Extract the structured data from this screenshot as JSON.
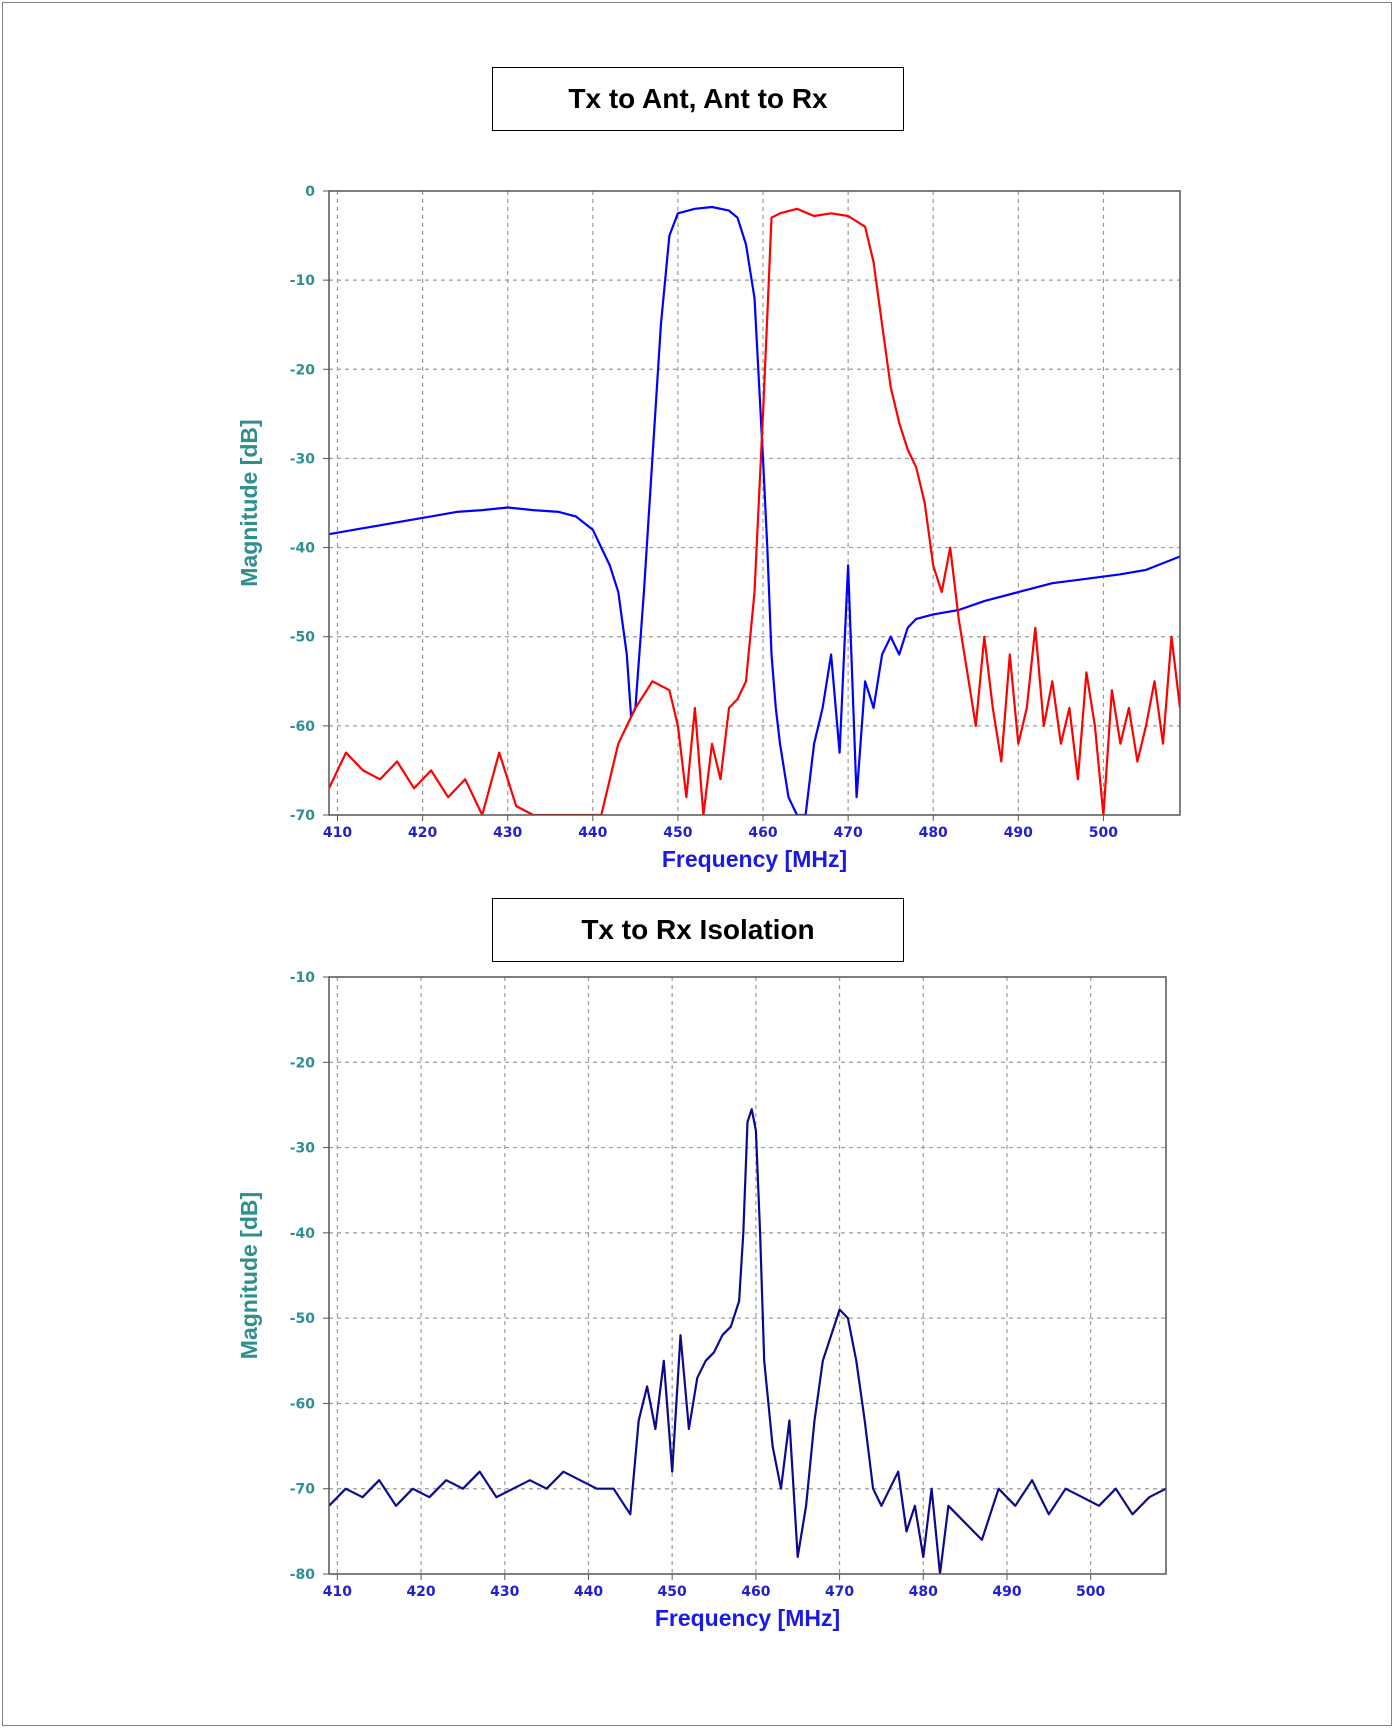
{
  "chart_data": [
    {
      "type": "line",
      "title": "Tx to Ant, Ant to Rx",
      "xlabel": "Frequency [MHz]",
      "ylabel": "Magnitude [dB]",
      "xlim": [
        409,
        509
      ],
      "ylim": [
        -70,
        0
      ],
      "xticks": [
        410,
        420,
        430,
        440,
        450,
        460,
        470,
        480,
        490,
        500
      ],
      "yticks": [
        0,
        -10,
        -20,
        -30,
        -40,
        -50,
        -60,
        -70
      ],
      "grid": true,
      "series": [
        {
          "color": "#0000ff",
          "x": [
            409,
            412,
            415,
            418,
            421,
            424,
            427,
            430,
            433,
            436,
            438,
            440,
            441,
            442,
            443,
            444,
            444.5,
            445,
            446,
            447,
            448,
            449,
            450,
            452,
            454,
            456,
            457,
            458,
            459,
            460,
            460.5,
            461,
            461.5,
            462,
            463,
            464,
            465,
            466,
            467,
            468,
            469,
            470,
            471,
            472,
            473,
            474,
            475,
            476,
            477,
            478,
            480,
            483,
            486,
            490,
            494,
            498,
            502,
            505,
            509
          ],
          "y": [
            -38.5,
            -38,
            -37.5,
            -37,
            -36.5,
            -36,
            -35.8,
            -35.5,
            -35.8,
            -36,
            -36.5,
            -38,
            -40,
            -42,
            -45,
            -52,
            -59,
            -58,
            -45,
            -30,
            -15,
            -5,
            -2.5,
            -2,
            -1.8,
            -2.2,
            -3,
            -6,
            -12,
            -30,
            -40,
            -52,
            -58,
            -62,
            -68,
            -70,
            -70,
            -62,
            -58,
            -52,
            -63,
            -42,
            -68,
            -55,
            -58,
            -52,
            -50,
            -52,
            -49,
            -48,
            -47.5,
            -47,
            -46,
            -45,
            -44,
            -43.5,
            -43,
            -42.5,
            -41
          ]
        },
        {
          "color": "#ff0000",
          "x": [
            409,
            411,
            413,
            415,
            417,
            419,
            421,
            423,
            425,
            427,
            429,
            431,
            433,
            435,
            437,
            439,
            441,
            443,
            445,
            447,
            449,
            450,
            451,
            452,
            453,
            454,
            455,
            456,
            457,
            458,
            459,
            460,
            460.5,
            461,
            462,
            464,
            466,
            468,
            470,
            472,
            473,
            474,
            475,
            476,
            477,
            478,
            479,
            480,
            481,
            482,
            483,
            484,
            485,
            486,
            487,
            488,
            489,
            490,
            491,
            492,
            493,
            494,
            495,
            496,
            497,
            498,
            499,
            500,
            501,
            502,
            503,
            504,
            505,
            506,
            507,
            508,
            509
          ],
          "y": [
            -67,
            -63,
            -65,
            -66,
            -64,
            -67,
            -65,
            -68,
            -66,
            -70,
            -63,
            -69,
            -70,
            -70,
            -70,
            -70,
            -70,
            -62,
            -58,
            -55,
            -56,
            -60,
            -68,
            -58,
            -70,
            -62,
            -66,
            -58,
            -57,
            -55,
            -45,
            -25,
            -14,
            -3,
            -2.5,
            -2,
            -2.8,
            -2.5,
            -2.8,
            -4,
            -8,
            -15,
            -22,
            -26,
            -29,
            -31,
            -35,
            -42,
            -45,
            -40,
            -48,
            -54,
            -60,
            -50,
            -58,
            -64,
            -52,
            -62,
            -58,
            -49,
            -60,
            -55,
            -62,
            -58,
            -66,
            -54,
            -60,
            -70,
            -56,
            -62,
            -58,
            -64,
            -60,
            -55,
            -62,
            -50,
            -58
          ]
        }
      ]
    },
    {
      "type": "line",
      "title": "Tx to Rx Isolation",
      "xlabel": "Frequency [MHz]",
      "ylabel": "Magnitude [dB]",
      "xlim": [
        409,
        509
      ],
      "ylim": [
        -80,
        -10
      ],
      "xticks": [
        410,
        420,
        430,
        440,
        450,
        460,
        470,
        480,
        490,
        500
      ],
      "yticks": [
        -10,
        -20,
        -30,
        -40,
        -50,
        -60,
        -70,
        -80
      ],
      "grid": true,
      "series": [
        {
          "color": "#0a0a8c",
          "x": [
            409,
            411,
            413,
            415,
            417,
            419,
            421,
            423,
            425,
            427,
            429,
            431,
            433,
            435,
            437,
            439,
            441,
            443,
            445,
            446,
            447,
            448,
            449,
            450,
            451,
            452,
            453,
            454,
            455,
            456,
            457,
            458,
            458.5,
            459,
            459.5,
            460,
            460.5,
            461,
            462,
            463,
            464,
            465,
            466,
            467,
            468,
            469,
            470,
            471,
            472,
            473,
            474,
            475,
            476,
            477,
            478,
            479,
            480,
            481,
            482,
            483,
            485,
            487,
            489,
            491,
            493,
            495,
            497,
            499,
            501,
            503,
            505,
            507,
            509
          ],
          "y": [
            -72,
            -70,
            -71,
            -69,
            -72,
            -70,
            -71,
            -69,
            -70,
            -68,
            -71,
            -70,
            -69,
            -70,
            -68,
            -69,
            -70,
            -70,
            -73,
            -62,
            -58,
            -63,
            -55,
            -68,
            -52,
            -63,
            -57,
            -55,
            -54,
            -52,
            -51,
            -48,
            -40,
            -27,
            -25.5,
            -28,
            -40,
            -55,
            -65,
            -70,
            -62,
            -78,
            -72,
            -62,
            -55,
            -52,
            -49,
            -50,
            -55,
            -62,
            -70,
            -72,
            -70,
            -68,
            -75,
            -72,
            -78,
            -70,
            -80,
            -72,
            -74,
            -76,
            -70,
            -72,
            -69,
            -73,
            -70,
            -71,
            -72,
            -70,
            -73,
            -71,
            -70
          ]
        }
      ]
    }
  ]
}
